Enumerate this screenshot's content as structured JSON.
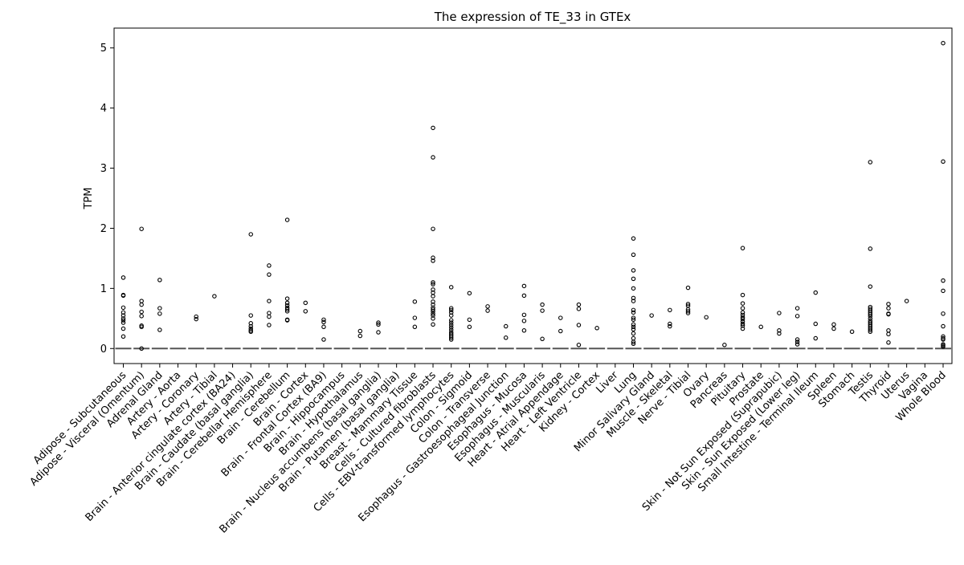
{
  "chart_data": {
    "type": "scatter",
    "title": "The expression of TE_33 in GTEx",
    "xlabel": "",
    "ylabel": "TPM",
    "ylim": [
      -0.25,
      5.33
    ],
    "yticks": [
      0,
      1,
      2,
      3,
      4,
      5
    ],
    "ytick_labels": [
      "0",
      "1",
      "2",
      "3",
      "4",
      "5"
    ],
    "grid": false,
    "legend": "none",
    "categories": [
      "Adipose - Subcutaneous",
      "Adipose - Visceral (Omentum)",
      "Adrenal Gland",
      "Artery - Aorta",
      "Artery - Coronary",
      "Artery - Tibial",
      "Brain - Anterior cingulate cortex (BA24)",
      "Brain - Caudate (basal ganglia)",
      "Brain - Cerebellar Hemisphere",
      "Brain - Cerebellum",
      "Brain - Cortex",
      "Brain - Frontal Cortex (BA9)",
      "Brain - Hippocampus",
      "Brain - Hypothalamus",
      "Brain - Nucleus accumbens (basal ganglia)",
      "Brain - Putamen (basal ganglia)",
      "Breast - Mammary Tissue",
      "Cells - Cultured fibroblasts",
      "Cells - EBV-transformed lymphocytes",
      "Colon - Sigmoid",
      "Colon - Transverse",
      "Esophagus - Gastroesophageal Junction",
      "Esophagus - Mucosa",
      "Esophagus - Muscularis",
      "Heart - Atrial Appendage",
      "Heart - Left Ventricle",
      "Kidney - Cortex",
      "Liver",
      "Lung",
      "Minor Salivary Gland",
      "Muscle - Skeletal",
      "Nerve - Tibial",
      "Ovary",
      "Pancreas",
      "Pituitary",
      "Prostate",
      "Skin - Not Sun Exposed (Suprapubic)",
      "Skin - Sun Exposed (Lower leg)",
      "Small Intestine - Terminal Ileum",
      "Spleen",
      "Stomach",
      "Testis",
      "Thyroid",
      "Uterus",
      "Vagina",
      "Whole Blood"
    ],
    "median": [
      0,
      0,
      0,
      0,
      0,
      0,
      0,
      0,
      0,
      0,
      0,
      0,
      0,
      0,
      0,
      0,
      0,
      0,
      0,
      0,
      0,
      0,
      0,
      0,
      0,
      0,
      0,
      0,
      0,
      0,
      0,
      0,
      0,
      0,
      0,
      0,
      0,
      0,
      0,
      0,
      0,
      0,
      0,
      0,
      0,
      0
    ],
    "points": [
      [
        1.18,
        0.89,
        0.88,
        0.68,
        0.6,
        0.55,
        0.5,
        0.47,
        0.43,
        0.33,
        0.2
      ],
      [
        1.99,
        0.79,
        0.73,
        0.61,
        0.54,
        0.38,
        0.36,
        0
      ],
      [
        1.14,
        0.67,
        0.58,
        0.31
      ],
      [],
      [
        0.53,
        0.49
      ],
      [
        0.87
      ],
      [],
      [
        1.9,
        0.55,
        0.42,
        0.37,
        0.33,
        0.3,
        0.28
      ],
      [
        1.38,
        1.23,
        0.79,
        0.59,
        0.53,
        0.39
      ],
      [
        2.14,
        0.83,
        0.76,
        0.72,
        0.68,
        0.65,
        0.62,
        0.48,
        0.47
      ],
      [
        0.76,
        0.62
      ],
      [
        0.48,
        0.44,
        0.36,
        0.15
      ],
      [],
      [
        0.29,
        0.21
      ],
      [
        0.43,
        0.4,
        0.27
      ],
      [],
      [
        0.78,
        0.51,
        0.36
      ],
      [
        3.67,
        3.18,
        1.99,
        1.51,
        1.46,
        1.1,
        1.07,
        0.98,
        0.93,
        0.87,
        0.78,
        0.73,
        0.68,
        0.65,
        0.62,
        0.58,
        0.55,
        0.5,
        0.4
      ],
      [
        1.02,
        0.67,
        0.64,
        0.6,
        0.55,
        0.47,
        0.43,
        0.39,
        0.35,
        0.31,
        0.27,
        0.24,
        0.21,
        0.18,
        0.15
      ],
      [
        0.92,
        0.48,
        0.36
      ],
      [
        0.7,
        0.63
      ],
      [
        0.37,
        0.18
      ],
      [
        1.04,
        0.88,
        0.56,
        0.46,
        0.3
      ],
      [
        0.73,
        0.63,
        0.16
      ],
      [
        0.51,
        0.29
      ],
      [
        0.73,
        0.66,
        0.39,
        0.06
      ],
      [
        0.34
      ],
      [],
      [
        1.83,
        1.56,
        1.3,
        1.16,
        1.0,
        0.84,
        0.79,
        0.64,
        0.6,
        0.51,
        0.48,
        0.4,
        0.36,
        0.32,
        0.25,
        0.17,
        0.11,
        0.08
      ],
      [
        0.55
      ],
      [
        0.64,
        0.41,
        0.37
      ],
      [
        1.01,
        0.74,
        0.71,
        0.65,
        0.62,
        0.59
      ],
      [
        0.52
      ],
      [
        0.06
      ],
      [
        1.67,
        0.89,
        0.75,
        0.67,
        0.6,
        0.56,
        0.52,
        0.49,
        0.45,
        0.41,
        0.38,
        0.33
      ],
      [
        0.36
      ],
      [
        0.59,
        0.3,
        0.25
      ],
      [
        0.67,
        0.54,
        0.15,
        0.11,
        0.07
      ],
      [
        0.93,
        0.41,
        0.17
      ],
      [
        0.4,
        0.33
      ],
      [
        0.28
      ],
      [
        3.1,
        1.66,
        1.03,
        0.69,
        0.66,
        0.63,
        0.6,
        0.57,
        0.54,
        0.5,
        0.46,
        0.43,
        0.4,
        0.37,
        0.34,
        0.31,
        0.28
      ],
      [
        0.74,
        0.67,
        0.58,
        0.57,
        0.3,
        0.24,
        0.1
      ],
      [
        0.79
      ],
      [],
      [
        5.08,
        3.11,
        1.13,
        0.96,
        0.58,
        0.37,
        0.2,
        0.17,
        0.15,
        0.07,
        0.05,
        0.03
      ]
    ]
  }
}
